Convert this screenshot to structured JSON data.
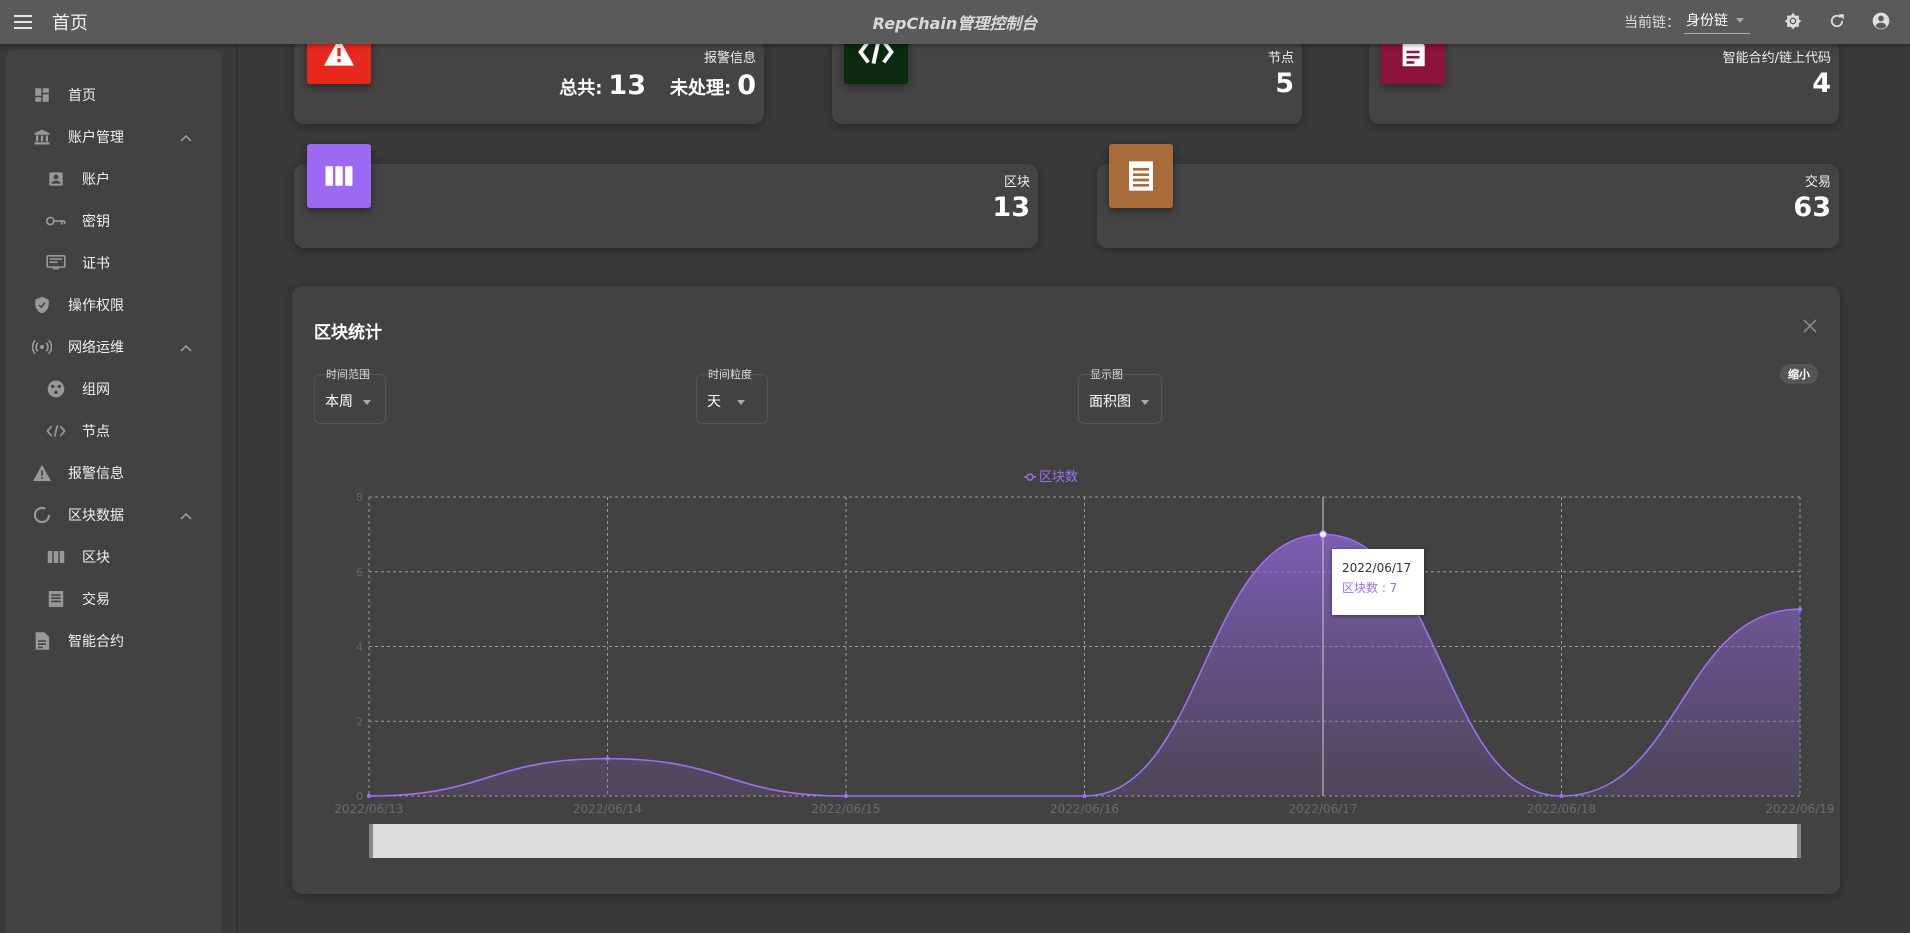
{
  "header": {
    "page_title": "首页",
    "app_title": "RepChain管理控制台",
    "chain_label": "当前链：",
    "chain_value": "身份链"
  },
  "sidebar": {
    "items": [
      {
        "label": "首页",
        "icon": "dashboard-icon"
      },
      {
        "label": "账户管理",
        "icon": "bank-icon"
      },
      {
        "label": "账户",
        "icon": "account-box-icon"
      },
      {
        "label": "密钥",
        "icon": "key-icon"
      },
      {
        "label": "证书",
        "icon": "certificate-icon"
      },
      {
        "label": "操作权限",
        "icon": "shield-icon"
      },
      {
        "label": "网络运维",
        "icon": "network-icon"
      },
      {
        "label": "组网",
        "icon": "network-group-icon"
      },
      {
        "label": "节点",
        "icon": "node-icon"
      },
      {
        "label": "报警信息",
        "icon": "alert-icon"
      },
      {
        "label": "区块数据",
        "icon": "loading-circle-icon"
      },
      {
        "label": "区块",
        "icon": "block-columns-icon"
      },
      {
        "label": "交易",
        "icon": "transaction-list-icon"
      },
      {
        "label": "智能合约",
        "icon": "contract-document-icon"
      }
    ]
  },
  "cards": {
    "alarm": {
      "label": "报警信息",
      "total_label": "总共:",
      "total_value": "13",
      "pending_label": "未处理:",
      "pending_value": "0",
      "color": "#e8281c"
    },
    "node": {
      "label": "节点",
      "value": "5",
      "color": "#0b2a0f"
    },
    "contract": {
      "label": "智能合约/链上代码",
      "value": "4",
      "color": "#8e1239"
    },
    "block": {
      "label": "区块",
      "value": "13",
      "color": "#9c6af2"
    },
    "tx": {
      "label": "交易",
      "value": "63",
      "color": "#a86c3b"
    }
  },
  "stats": {
    "title": "区块统计",
    "shrink_label": "缩小",
    "range_label": "时间范围",
    "range_value": "本周",
    "granularity_label": "时间粒度",
    "granularity_value": "天",
    "display_label": "显示图",
    "display_value": "面积图"
  },
  "tooltip": {
    "date": "2022/06/17",
    "text": "区块数 : 7"
  },
  "chart_data": {
    "type": "area",
    "x": [
      "2022/06/13",
      "2022/06/14",
      "2022/06/15",
      "2022/06/16",
      "2022/06/17",
      "2022/06/18",
      "2022/06/19"
    ],
    "series": [
      {
        "name": "区块数",
        "values": [
          0,
          1,
          0,
          0,
          7,
          0,
          5
        ]
      }
    ],
    "ylim": [
      0,
      8
    ],
    "yticks": [
      0,
      2,
      4,
      6,
      8
    ],
    "grid": true,
    "legend": "top-center",
    "color": "#9d6ff2"
  }
}
